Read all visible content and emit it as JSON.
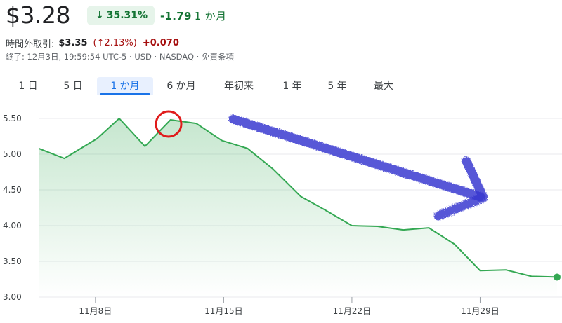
{
  "quote": {
    "price": "$3.28",
    "change_pct": "35.31%",
    "change_abs": "-1.79",
    "period": "1 か月"
  },
  "after_hours": {
    "label": "時間外取引:",
    "price": "$3.35",
    "pct": "(↑2.13%)",
    "abs": "+0.070"
  },
  "status": "終了: 12月3日, 19:59:54 UTC-5 · USD · NASDAQ · 免責条項",
  "tabs": [
    {
      "label": "1 日",
      "active": false
    },
    {
      "label": "5 日",
      "active": false
    },
    {
      "label": "1 か月",
      "active": true
    },
    {
      "label": "6 か月",
      "active": false
    },
    {
      "label": "年初来",
      "active": false
    },
    {
      "label": "1 年",
      "active": false
    },
    {
      "label": "5 年",
      "active": false
    },
    {
      "label": "最大",
      "active": false
    }
  ],
  "colors": {
    "line": "#34a853",
    "fill_top": "#34a853",
    "gain_text": "#137333",
    "loss_text": "#a50e0e",
    "active_tab": "#1a73e8",
    "annotation_circle": "#e01b1b",
    "annotation_arrow": "#3a3ad0"
  },
  "icons": {
    "badge_arrow": "down-arrow-icon",
    "annotation_circle": "red-circle-annotation",
    "annotation_arrow": "blue-hand-drawn-arrow-annotation"
  },
  "chart_data": {
    "type": "area",
    "yticks": [
      5.5,
      5.0,
      4.5,
      4.0,
      3.5,
      3.0
    ],
    "ytick_labels": [
      "5.50",
      "5.00",
      "4.50",
      "4.00",
      "3.50",
      "3.00"
    ],
    "ylim": [
      3.0,
      5.6
    ],
    "xticks": [
      {
        "label": "11月8日",
        "day": 8
      },
      {
        "label": "11月15日",
        "day": 15
      },
      {
        "label": "11月22日",
        "day": 22
      },
      {
        "label": "11月29日",
        "day": 29
      }
    ],
    "xlim_days": [
      4.9,
      33.2
    ],
    "series": [
      {
        "x": [
          4.9,
          6.3,
          8.1,
          9.3,
          10.7,
          12.1,
          13.5,
          14.9,
          16.3,
          17.7,
          19.2,
          20.6,
          22.0,
          23.4,
          24.8,
          26.2,
          27.6,
          29.0,
          30.4,
          31.8,
          33.2
        ],
        "y": [
          5.08,
          4.94,
          5.22,
          5.5,
          5.11,
          5.48,
          5.43,
          5.19,
          5.08,
          4.79,
          4.41,
          4.21,
          4.0,
          3.99,
          3.94,
          3.97,
          3.74,
          3.37,
          3.38,
          3.29,
          3.28
        ]
      }
    ]
  }
}
